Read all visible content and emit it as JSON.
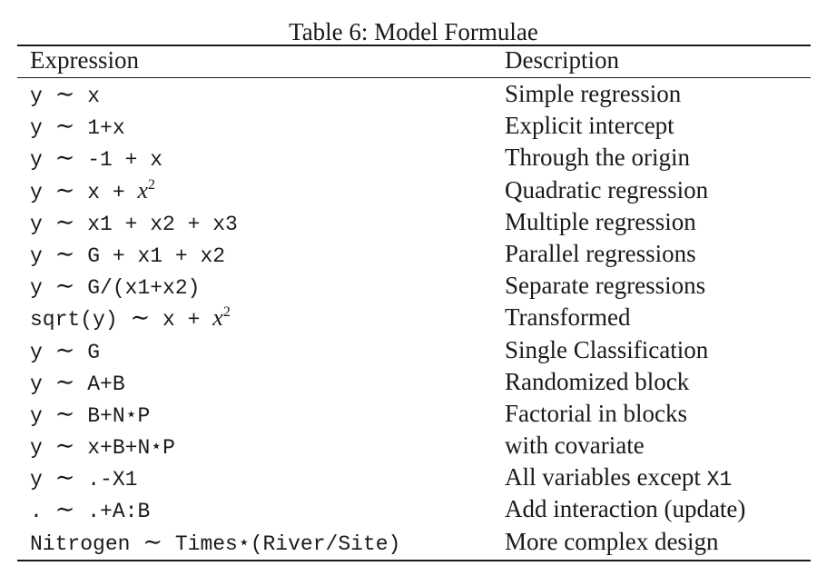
{
  "table": {
    "caption": "Table 6: Model Formulae",
    "headers": {
      "expression": "Expression",
      "description": "Description"
    },
    "tilde": "∼",
    "rows": [
      {
        "lhs": "y",
        "rhs": "x",
        "description": "Simple regression"
      },
      {
        "lhs": "y",
        "rhs": "1+x",
        "description": "Explicit intercept"
      },
      {
        "lhs": "y",
        "rhs": "-1 + x",
        "description": "Through the origin"
      },
      {
        "lhs": "y",
        "rhs": "x + ",
        "math_var": "x",
        "math_exp": "2",
        "description": "Quadratic regression"
      },
      {
        "lhs": "y",
        "rhs": "x1 + x2 + x3",
        "description": "Multiple regression"
      },
      {
        "lhs": "y",
        "rhs": "G + x1 + x2",
        "description": "Parallel regressions"
      },
      {
        "lhs": "y",
        "rhs": "G/(x1+x2)",
        "description": "Separate regressions"
      },
      {
        "lhs": "sqrt(y)",
        "rhs": "x + ",
        "math_var": "x",
        "math_exp": "2",
        "description": "Transformed"
      },
      {
        "lhs": "y",
        "rhs": "G",
        "description": "Single Classification"
      },
      {
        "lhs": "y",
        "rhs": "A+B",
        "description": "Randomized block"
      },
      {
        "lhs": "y",
        "rhs": "B+N⋆P",
        "description": "Factorial in blocks"
      },
      {
        "lhs": "y",
        "rhs": "x+B+N⋆P",
        "description": "with covariate"
      },
      {
        "lhs": "y",
        "rhs": ".-X1",
        "description": "All variables except ",
        "description_code": "X1"
      },
      {
        "lhs": ".",
        "rhs": ".+A:B",
        "description": "Add interaction (update)"
      },
      {
        "lhs": "Nitrogen",
        "rhs": "Times⋆(River/Site)",
        "description": "More complex design"
      }
    ]
  }
}
